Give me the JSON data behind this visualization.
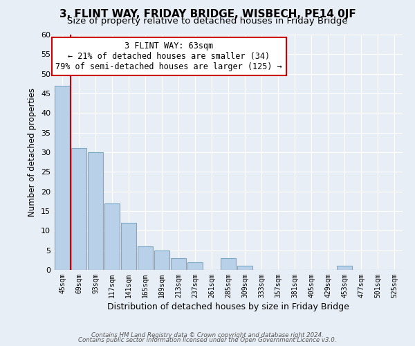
{
  "title": "3, FLINT WAY, FRIDAY BRIDGE, WISBECH, PE14 0JF",
  "subtitle": "Size of property relative to detached houses in Friday Bridge",
  "xlabel": "Distribution of detached houses by size in Friday Bridge",
  "ylabel": "Number of detached properties",
  "footer_line1": "Contains HM Land Registry data © Crown copyright and database right 2024.",
  "footer_line2": "Contains public sector information licensed under the Open Government Licence v3.0.",
  "bin_labels": [
    "45sqm",
    "69sqm",
    "93sqm",
    "117sqm",
    "141sqm",
    "165sqm",
    "189sqm",
    "213sqm",
    "237sqm",
    "261sqm",
    "285sqm",
    "309sqm",
    "333sqm",
    "357sqm",
    "381sqm",
    "405sqm",
    "429sqm",
    "453sqm",
    "477sqm",
    "501sqm",
    "525sqm"
  ],
  "bar_values": [
    47,
    31,
    30,
    17,
    12,
    6,
    5,
    3,
    2,
    0,
    3,
    1,
    0,
    0,
    0,
    0,
    0,
    1,
    0,
    0,
    0
  ],
  "bar_color": "#b8d0e8",
  "bar_edge_color": "#7aaac8",
  "highlight_line_color": "#cc0000",
  "annotation_title": "3 FLINT WAY: 63sqm",
  "annotation_line1": "← 21% of detached houses are smaller (34)",
  "annotation_line2": "79% of semi-detached houses are larger (125) →",
  "annotation_box_color": "#ffffff",
  "annotation_box_edge_color": "#cc0000",
  "ylim": [
    0,
    60
  ],
  "yticks": [
    0,
    5,
    10,
    15,
    20,
    25,
    30,
    35,
    40,
    45,
    50,
    55,
    60
  ],
  "background_color": "#e8eef5",
  "grid_color": "#ffffff",
  "title_fontsize": 11,
  "subtitle_fontsize": 9.5
}
